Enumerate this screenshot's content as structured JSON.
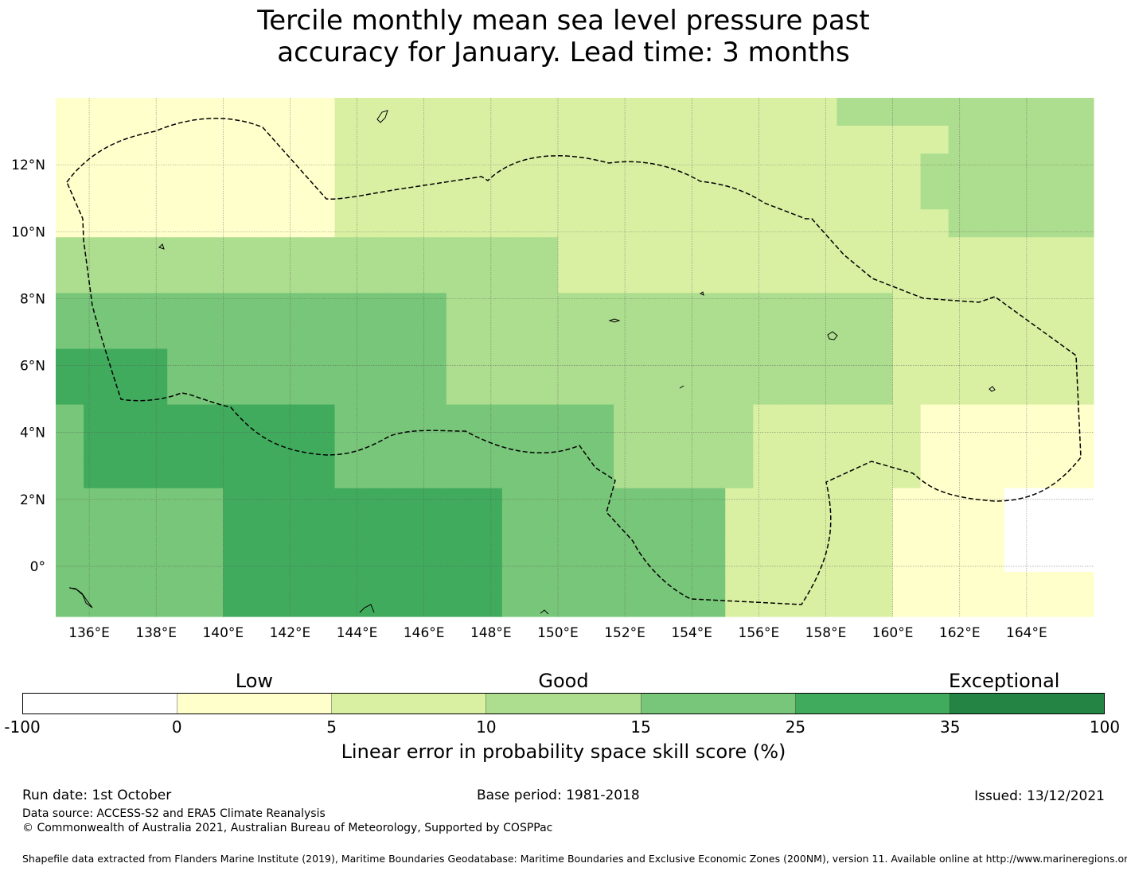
{
  "title": {
    "line1": "Tercile monthly mean sea level pressure past",
    "line2": "accuracy for January. Lead time: 3 months"
  },
  "chart_data": {
    "type": "heatmap",
    "lon_range": [
      135,
      166
    ],
    "lat_range": [
      -1.5,
      14
    ],
    "cell_size_deg": 0.8333,
    "grid_lines": true,
    "lon_ticks": [
      136,
      138,
      140,
      142,
      144,
      146,
      148,
      150,
      152,
      154,
      156,
      158,
      160,
      162,
      164
    ],
    "lon_tick_labels": [
      "136°E",
      "138°E",
      "140°E",
      "142°E",
      "144°E",
      "146°E",
      "148°E",
      "150°E",
      "152°E",
      "154°E",
      "156°E",
      "158°E",
      "160°E",
      "162°E",
      "164°E"
    ],
    "lat_ticks": [
      12,
      10,
      8,
      6,
      4,
      2,
      0
    ],
    "lat_tick_labels": [
      "12°N",
      "10°N",
      "8°N",
      "6°N",
      "4°N",
      "2°N",
      "0°"
    ],
    "boundary": "dashed EEZ outline",
    "colorbar": {
      "bounds": [
        "-100",
        "0",
        "5",
        "10",
        "15",
        "25",
        "35",
        "100"
      ],
      "colors": [
        "#ffffff",
        "#ffffcc",
        "#d9f0a3",
        "#addd8e",
        "#78c679",
        "#41ab5d",
        "#238443"
      ],
      "categories": [
        {
          "label": "Low",
          "at_bin": 1.5
        },
        {
          "label": "Good",
          "at_bin": 3.5
        },
        {
          "label": "Exceptional",
          "at_bin": 6.35
        }
      ],
      "label": "Linear error in probability space skill score (%)"
    }
  },
  "footer": {
    "run_date": "Run date: 1st October",
    "base_period": "Base period: 1981-2018",
    "issued": "Issued: 13/12/2021",
    "data_source": "Data source: ACCESS-S2 and ERA5 Climate Reanalysis",
    "copyright": "© Commonwealth of Australia 2021, Australian Bureau of Meteorology, Supported by COSPPac",
    "shapefile": "Shapefile data extracted from Flanders Marine Institute (2019), Maritime Boundaries Geodatabase: Maritime Boundaries and Exclusive Economic Zones (200NM), version 11. Available online at http://www.marineregions.org/."
  }
}
